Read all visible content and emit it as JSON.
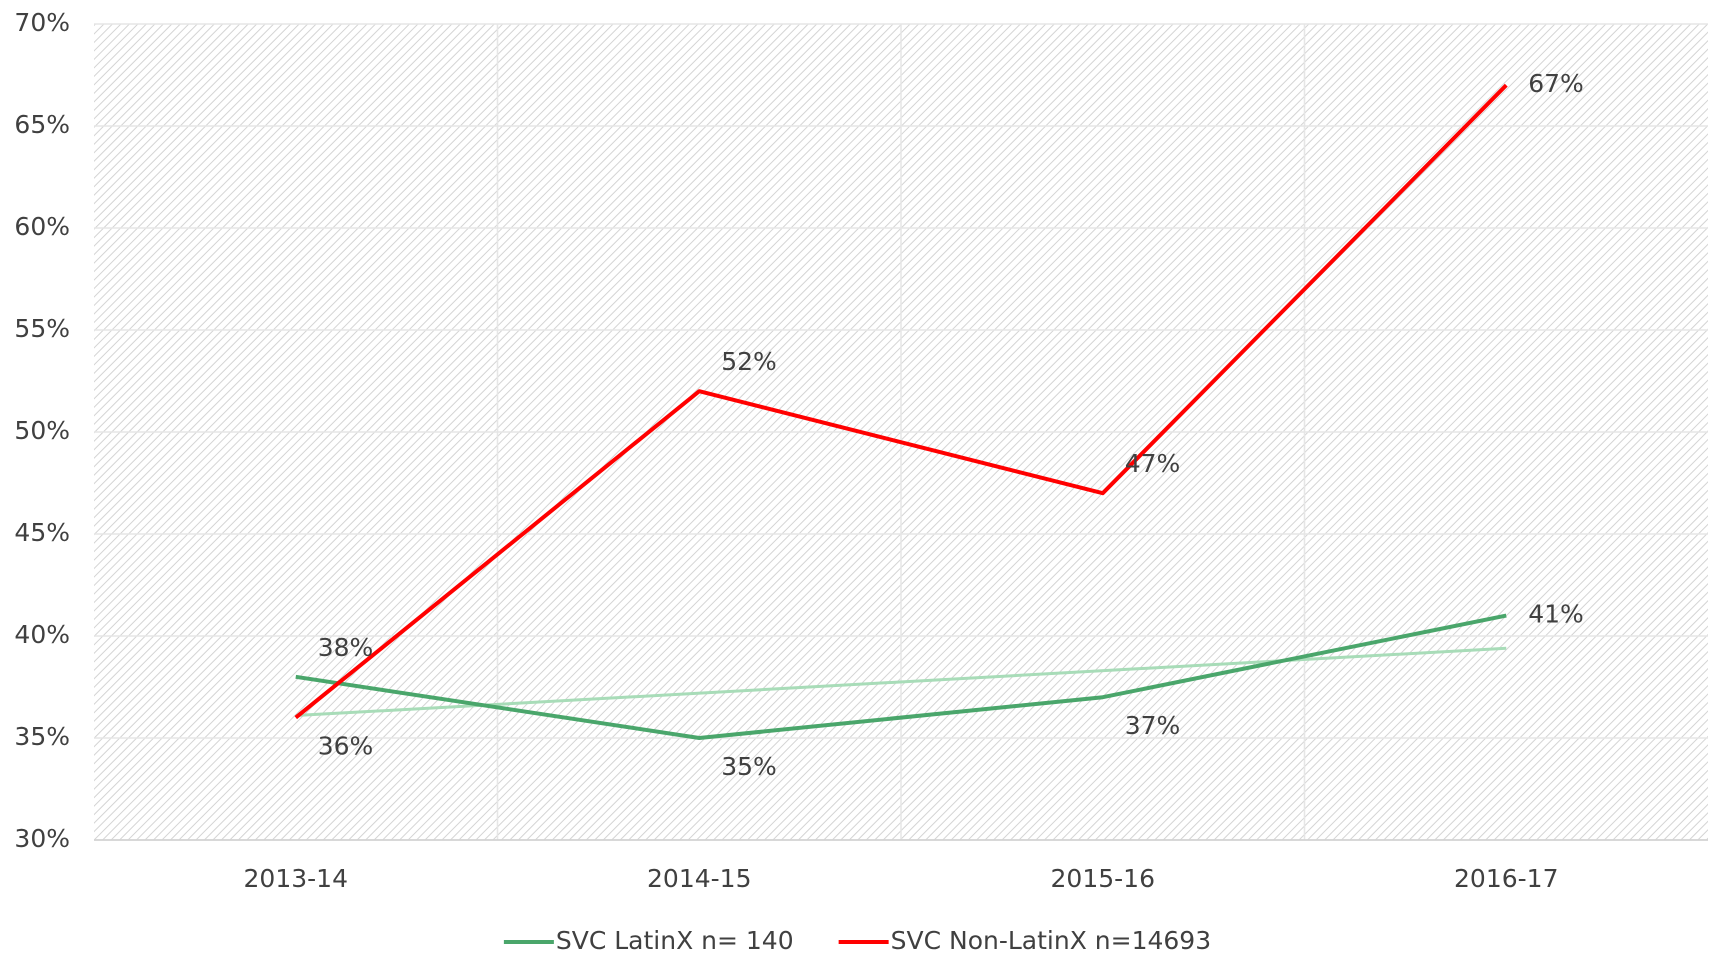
{
  "chart_data": {
    "type": "line",
    "categories": [
      "2013-14",
      "2014-15",
      "2015-16",
      "2016-17"
    ],
    "series": [
      {
        "name": "SVC LatinX n= 140",
        "color": "#4aa66b",
        "values": [
          38,
          35,
          37,
          41
        ],
        "value_labels": [
          "38%",
          "35%",
          "37%",
          "41%"
        ],
        "trendline": {
          "color": "#a8dcb8"
        }
      },
      {
        "name": "SVC Non-LatinX n=14693",
        "color": "#ff0000",
        "values": [
          36,
          52,
          47,
          67
        ],
        "value_labels": [
          "36%",
          "52%",
          "47%",
          "67%"
        ]
      }
    ],
    "ylim": [
      30,
      70
    ],
    "yticks": [
      {
        "value": 30,
        "label": "30%"
      },
      {
        "value": 35,
        "label": "35%"
      },
      {
        "value": 40,
        "label": "40%"
      },
      {
        "value": 45,
        "label": "45%"
      },
      {
        "value": 50,
        "label": "50%"
      },
      {
        "value": 55,
        "label": "55%"
      },
      {
        "value": 60,
        "label": "60%"
      },
      {
        "value": 65,
        "label": "65%"
      },
      {
        "value": 70,
        "label": "70%"
      }
    ],
    "grid": true,
    "legend": "bottom"
  }
}
